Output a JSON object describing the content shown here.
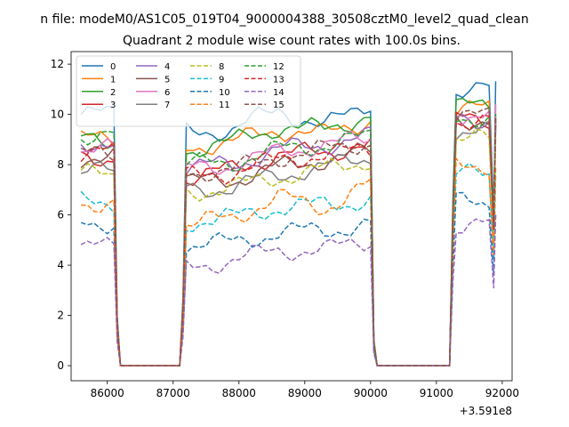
{
  "chart_data": {
    "type": "line",
    "suptitle": "n file: modeM0/AS1C05_019T04_9000004388_30508cztM0_level2_quad_clean",
    "title": "Quadrant 2 module wise count rates with 100.0s bins.",
    "xlabel": "",
    "ylabel": "",
    "x_offset_label": "+3.591e8",
    "xlim": [
      85450,
      92150
    ],
    "ylim": [
      -0.6,
      12.5
    ],
    "xticks": [
      86000,
      87000,
      88000,
      89000,
      90000,
      91000,
      92000
    ],
    "yticks": [
      0,
      2,
      4,
      6,
      8,
      10,
      12
    ],
    "legend_position": "upper-left",
    "legend_columns": 4,
    "grid": false,
    "segments": [
      [
        85600,
        86100
      ],
      [
        87200,
        90000
      ],
      [
        91300,
        91900
      ]
    ],
    "series": [
      {
        "name": "0",
        "color": "#1f77b4",
        "dash": "solid",
        "levels": [
          10.0,
          9.3,
          9.4,
          10.2,
          9.5,
          10.5,
          11.0
        ],
        "n1": 0.15,
        "n2": 0.3
      },
      {
        "name": "1",
        "color": "#ff7f0e",
        "dash": "solid",
        "levels": [
          9.0,
          8.7,
          8.9,
          9.4,
          9.2,
          9.8,
          10.2
        ],
        "n1": 0.15,
        "n2": 0.3
      },
      {
        "name": "2",
        "color": "#2ca02c",
        "dash": "solid",
        "levels": [
          9.0,
          8.6,
          8.9,
          9.5,
          9.4,
          10.0,
          10.3
        ],
        "n1": 0.15,
        "n2": 0.3
      },
      {
        "name": "3",
        "color": "#d62728",
        "dash": "solid",
        "levels": [
          8.3,
          7.5,
          7.8,
          8.4,
          8.5,
          8.8,
          9.8
        ],
        "n1": 0.15,
        "n2": 0.3
      },
      {
        "name": "4",
        "color": "#9467bd",
        "dash": "solid",
        "levels": [
          8.9,
          7.9,
          8.0,
          8.6,
          8.8,
          9.1,
          9.8
        ],
        "n1": 0.15,
        "n2": 0.3
      },
      {
        "name": "5",
        "color": "#8c564b",
        "dash": "solid",
        "levels": [
          8.3,
          7.3,
          7.4,
          7.9,
          8.2,
          8.5,
          9.8
        ],
        "n1": 0.15,
        "n2": 0.3
      },
      {
        "name": "6",
        "color": "#e377c2",
        "dash": "solid",
        "levels": [
          8.6,
          7.8,
          8.0,
          8.5,
          8.8,
          9.0,
          10.0
        ],
        "n1": 0.15,
        "n2": 0.3
      },
      {
        "name": "7",
        "color": "#7f7f7f",
        "dash": "solid",
        "levels": [
          7.7,
          7.0,
          7.1,
          7.6,
          7.9,
          8.3,
          9.3
        ],
        "n1": 0.15,
        "n2": 0.3
      },
      {
        "name": "8",
        "color": "#bcbd22",
        "dash": "dashed",
        "levels": [
          7.6,
          6.9,
          7.1,
          7.5,
          7.8,
          8.2,
          9.0
        ],
        "n1": 0.15,
        "n2": 0.3
      },
      {
        "name": "9",
        "color": "#17becf",
        "dash": "dashed",
        "levels": [
          6.5,
          5.7,
          5.9,
          6.3,
          6.4,
          6.6,
          7.6
        ],
        "n1": 0.15,
        "n2": 0.3
      },
      {
        "name": "10",
        "color": "#1f77b4",
        "dash": "dashed",
        "levels": [
          5.7,
          4.8,
          4.9,
          5.3,
          5.4,
          5.6,
          6.5
        ],
        "n1": 0.15,
        "n2": 0.3
      },
      {
        "name": "11",
        "color": "#ff7f0e",
        "dash": "dashed",
        "levels": [
          6.5,
          5.6,
          5.9,
          6.7,
          6.3,
          7.2,
          8.0
        ],
        "n1": 0.15,
        "n2": 0.3
      },
      {
        "name": "12",
        "color": "#2ca02c",
        "dash": "dashed",
        "levels": [
          9.2,
          8.0,
          8.1,
          8.6,
          8.8,
          9.1,
          9.9
        ],
        "n1": 0.15,
        "n2": 0.3
      },
      {
        "name": "13",
        "color": "#d62728",
        "dash": "dashed",
        "levels": [
          8.5,
          7.5,
          7.7,
          8.2,
          8.4,
          8.6,
          9.8
        ],
        "n1": 0.15,
        "n2": 0.3
      },
      {
        "name": "14",
        "color": "#9467bd",
        "dash": "dashed",
        "levels": [
          4.7,
          3.9,
          4.2,
          4.6,
          4.6,
          5.0,
          5.6
        ],
        "n1": 0.15,
        "n2": 0.3
      },
      {
        "name": "15",
        "color": "#8c564b",
        "dash": "dashed",
        "levels": [
          8.4,
          7.7,
          7.8,
          8.3,
          8.6,
          8.9,
          9.9
        ],
        "n1": 0.15,
        "n2": 0.3
      }
    ]
  }
}
